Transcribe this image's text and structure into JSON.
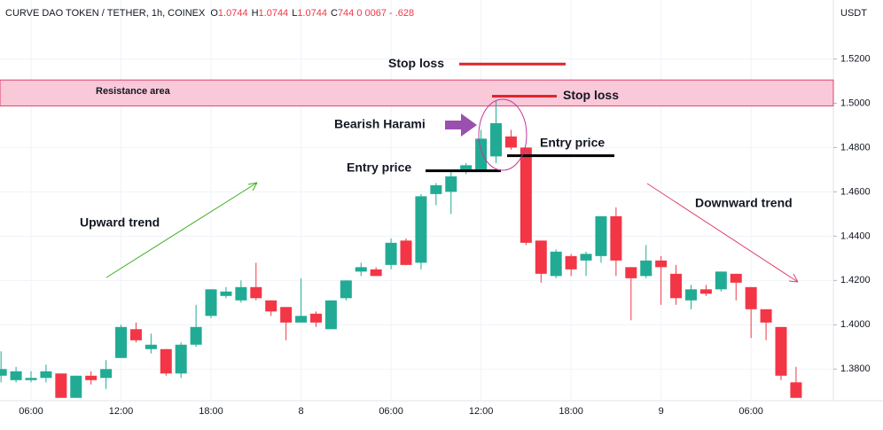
{
  "chart_data": {
    "type": "candlestick",
    "symbol": "CURVE DAO TOKEN / TETHER, 1h, COINEX",
    "legend": [
      {
        "key": "O",
        "value": "1.0744"
      },
      {
        "key": "H",
        "value": "1.0744"
      },
      {
        "key": "L",
        "value": "1.0744"
      },
      {
        "key": "C",
        "value": "744  0 0067 - .628"
      }
    ],
    "y_axis_label": "USDT",
    "categories": [
      null,
      null,
      "06:00",
      null,
      null,
      null,
      null,
      null,
      "12:00",
      null,
      null,
      null,
      null,
      null,
      "18:00",
      null,
      null,
      null,
      null,
      null,
      "8",
      null,
      null,
      null,
      null,
      null,
      "06:00",
      null,
      null,
      null,
      null,
      null,
      "12:00",
      null,
      null,
      null,
      null,
      null,
      "18:00",
      null,
      null,
      null,
      null,
      null,
      "9",
      null,
      null,
      null,
      null,
      null,
      "06:00",
      null,
      null,
      null
    ],
    "open": [
      1.377,
      1.375,
      1.375,
      1.376,
      1.378,
      1.367,
      1.377,
      1.376,
      1.385,
      1.398,
      1.389,
      1.389,
      1.378,
      1.391,
      1.404,
      1.413,
      1.411,
      1.417,
      1.411,
      1.408,
      1.401,
      1.405,
      1.398,
      1.412,
      1.424,
      1.425,
      1.427,
      1.438,
      1.428,
      1.459,
      1.46,
      1.469,
      1.47,
      1.476,
      1.485,
      1.48,
      1.438,
      1.422,
      1.431,
      1.429,
      1.431,
      1.449,
      1.426,
      1.422,
      1.429,
      1.423,
      1.411,
      1.416,
      1.416,
      1.423,
      1.417,
      1.407,
      1.399,
      1.374
    ],
    "high": [
      1.388,
      1.381,
      1.379,
      1.382,
      1.378,
      1.377,
      1.379,
      1.384,
      1.4,
      1.401,
      1.396,
      1.389,
      1.392,
      1.409,
      1.416,
      1.417,
      1.42,
      1.428,
      1.411,
      1.408,
      1.421,
      1.406,
      1.411,
      1.42,
      1.428,
      1.426,
      1.439,
      1.439,
      1.459,
      1.464,
      1.469,
      1.473,
      1.488,
      1.501,
      1.488,
      1.48,
      1.438,
      1.434,
      1.432,
      1.433,
      1.449,
      1.453,
      1.426,
      1.436,
      1.431,
      1.427,
      1.418,
      1.418,
      1.424,
      1.423,
      1.417,
      1.407,
      1.399,
      1.381
    ],
    "low": [
      1.374,
      1.374,
      1.374,
      1.374,
      1.367,
      1.367,
      1.373,
      1.371,
      1.385,
      1.392,
      1.387,
      1.377,
      1.376,
      1.39,
      1.403,
      1.412,
      1.41,
      1.411,
      1.404,
      1.393,
      1.401,
      1.399,
      1.398,
      1.411,
      1.422,
      1.422,
      1.425,
      1.427,
      1.425,
      1.454,
      1.45,
      1.468,
      1.469,
      1.473,
      1.479,
      1.436,
      1.419,
      1.421,
      1.422,
      1.422,
      1.428,
      1.422,
      1.402,
      1.421,
      1.409,
      1.409,
      1.407,
      1.413,
      1.415,
      1.411,
      1.394,
      1.393,
      1.375,
      1.367
    ],
    "close": [
      1.38,
      1.379,
      1.376,
      1.379,
      1.367,
      1.377,
      1.375,
      1.38,
      1.399,
      1.393,
      1.391,
      1.378,
      1.391,
      1.399,
      1.416,
      1.415,
      1.417,
      1.412,
      1.406,
      1.401,
      1.404,
      1.401,
      1.411,
      1.42,
      1.426,
      1.422,
      1.437,
      1.427,
      1.458,
      1.463,
      1.467,
      1.472,
      1.484,
      1.491,
      1.48,
      1.437,
      1.423,
      1.433,
      1.425,
      1.432,
      1.449,
      1.429,
      1.421,
      1.429,
      1.426,
      1.412,
      1.416,
      1.414,
      1.424,
      1.419,
      1.407,
      1.401,
      1.377,
      1.367
    ],
    "up_color": "#22ab94",
    "down_color": "#f23645",
    "ylim": [
      1.3657,
      1.5466
    ],
    "yticks": [
      {
        "value": 1.52,
        "label": "1.5200"
      },
      {
        "value": 1.5,
        "label": "1.5000"
      },
      {
        "value": 1.48,
        "label": "1.4800"
      },
      {
        "value": 1.46,
        "label": "1.4600"
      },
      {
        "value": 1.44,
        "label": "1.4400"
      },
      {
        "value": 1.42,
        "label": "1.4200"
      },
      {
        "value": 1.4,
        "label": "1.4000"
      },
      {
        "value": 1.38,
        "label": "1.3800"
      }
    ],
    "resistance": {
      "label": "Resistance area",
      "from": 1.4988,
      "to": 1.5105
    },
    "stop_losses": [
      {
        "label": "Stop loss",
        "y": 1.5177
      },
      {
        "label": "Stop loss",
        "y": 1.5032
      }
    ],
    "entries": [
      {
        "label": "Entry price",
        "y": 1.4695
      },
      {
        "label": "Entry price",
        "y": 1.4763
      }
    ],
    "pattern_label": "Bearish Harami",
    "trend_labels": [
      "Upward trend",
      "Downward trend"
    ]
  }
}
